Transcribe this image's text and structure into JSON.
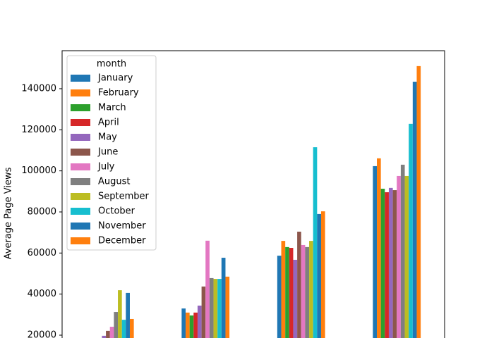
{
  "chart_data": {
    "type": "bar",
    "y_label": "Average Page Views",
    "legend_title": "month",
    "legend_position": "upper left",
    "categories": [
      null,
      null,
      null,
      null
    ],
    "series": [
      {
        "name": "January",
        "color": "#1f77b4",
        "values": [
          null,
          33000,
          58700,
          102300
        ]
      },
      {
        "name": "February",
        "color": "#ff7f0e",
        "values": [
          null,
          31000,
          65900,
          106100
        ]
      },
      {
        "name": "March",
        "color": "#2ca02c",
        "values": [
          null,
          29600,
          62900,
          91300
        ]
      },
      {
        "name": "April",
        "color": "#d62728",
        "values": [
          null,
          31000,
          62500,
          89600
        ]
      },
      {
        "name": "May",
        "color": "#9467bd",
        "values": [
          19700,
          34400,
          56700,
          91700
        ]
      },
      {
        "name": "June",
        "color": "#8c564b",
        "values": [
          22100,
          43700,
          70400,
          90600
        ]
      },
      {
        "name": "July",
        "color": "#e377c2",
        "values": [
          24100,
          66000,
          63900,
          97500
        ]
      },
      {
        "name": "August",
        "color": "#7f7f7f",
        "values": [
          31300,
          47800,
          62900,
          103000
        ]
      },
      {
        "name": "September",
        "color": "#bcbd22",
        "values": [
          41900,
          47400,
          65900,
          97500
        ]
      },
      {
        "name": "October",
        "color": "#17becf",
        "values": [
          27500,
          47400,
          111500,
          122900
        ]
      },
      {
        "name": "November",
        "color": "#1f77b4",
        "values": [
          40600,
          57700,
          79000,
          143400
        ]
      },
      {
        "name": "December",
        "color": "#ff7f0e",
        "values": [
          27900,
          48500,
          80300,
          151000
        ]
      }
    ],
    "ylim": [
      18630,
      158500
    ],
    "yticks": [
      20000,
      40000,
      60000,
      80000,
      100000,
      120000,
      140000
    ]
  }
}
